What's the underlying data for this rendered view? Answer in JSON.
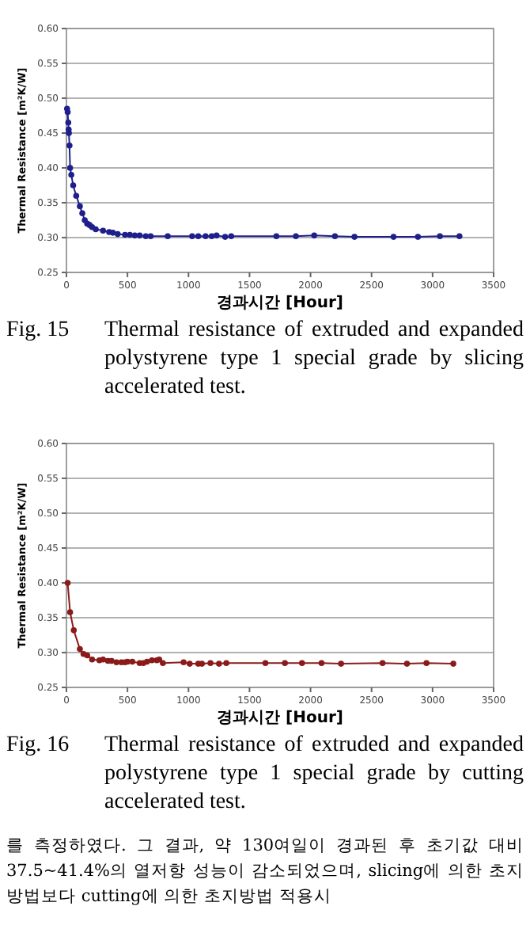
{
  "chart_data": [
    {
      "type": "line",
      "xlabel": "경과시간 [Hour]",
      "ylabel": "Thermal Resistance [m²K/W]",
      "xlim": [
        0,
        3500
      ],
      "ylim": [
        0.25,
        0.6
      ],
      "xticks": [
        0,
        500,
        1000,
        1500,
        2000,
        2500,
        3000,
        3500
      ],
      "yticks": [
        {
          "value": 0.25,
          "label": "0.25"
        },
        {
          "value": 0.3,
          "label": "0.30"
        },
        {
          "value": 0.35,
          "label": "0.35"
        },
        {
          "value": 0.4,
          "label": "0.40"
        },
        {
          "value": 0.45,
          "label": "0.45"
        },
        {
          "value": 0.5,
          "label": "0.50"
        },
        {
          "value": 0.55,
          "label": "0.55"
        },
        {
          "value": 0.6,
          "label": "0.60"
        }
      ],
      "grid": "y",
      "marker": "circle",
      "line_style": "solid",
      "x": [
        5,
        10,
        15,
        18,
        20,
        25,
        30,
        40,
        55,
        80,
        110,
        130,
        150,
        170,
        190,
        210,
        240,
        300,
        350,
        380,
        420,
        480,
        520,
        560,
        600,
        650,
        690,
        830,
        1030,
        1080,
        1140,
        1190,
        1230,
        1300,
        1350,
        1720,
        1880,
        2030,
        2200,
        2360,
        2680,
        2880,
        3060,
        3220
      ],
      "series": [
        {
          "color": "#1f1f8c",
          "values": [
            0.485,
            0.48,
            0.465,
            0.455,
            0.45,
            0.432,
            0.4,
            0.39,
            0.375,
            0.36,
            0.345,
            0.335,
            0.325,
            0.32,
            0.318,
            0.315,
            0.312,
            0.31,
            0.308,
            0.307,
            0.305,
            0.304,
            0.304,
            0.303,
            0.303,
            0.302,
            0.302,
            0.302,
            0.302,
            0.302,
            0.302,
            0.302,
            0.303,
            0.301,
            0.302,
            0.302,
            0.302,
            0.303,
            0.302,
            0.301,
            0.301,
            0.301,
            0.302,
            0.302
          ]
        }
      ],
      "annotations": [
        "Fig. 15 Thermal resistance of extruded and expanded polystyrene type 1 special grade by slicing accelerated test."
      ]
    },
    {
      "type": "line",
      "xlabel": "경과시간 [Hour]",
      "ylabel": "Thermal Resistance [m²K/W]",
      "xlim": [
        0,
        3500
      ],
      "ylim": [
        0.25,
        0.6
      ],
      "xticks": [
        0,
        500,
        1000,
        1500,
        2000,
        2500,
        3000,
        3500
      ],
      "yticks": [
        {
          "value": 0.25,
          "label": "0.25"
        },
        {
          "value": 0.3,
          "label": "0.30"
        },
        {
          "value": 0.35,
          "label": "0.35"
        },
        {
          "value": 0.4,
          "label": "0.40"
        },
        {
          "value": 0.45,
          "label": "0.45"
        },
        {
          "value": 0.5,
          "label": "0.50"
        },
        {
          "value": 0.55,
          "label": "0.55"
        },
        {
          "value": 0.6,
          "label": "0.60"
        }
      ],
      "grid": "y",
      "marker": "circle",
      "line_style": "solid",
      "x": [
        10,
        30,
        60,
        110,
        140,
        170,
        210,
        270,
        300,
        340,
        370,
        410,
        450,
        480,
        500,
        540,
        600,
        630,
        660,
        700,
        740,
        760,
        790,
        960,
        1010,
        1080,
        1110,
        1180,
        1250,
        1310,
        1630,
        1790,
        1930,
        2090,
        2250,
        2590,
        2790,
        2950,
        3170
      ],
      "series": [
        {
          "color": "#8b1a1a",
          "values": [
            0.4,
            0.358,
            0.332,
            0.305,
            0.298,
            0.296,
            0.29,
            0.289,
            0.29,
            0.288,
            0.288,
            0.286,
            0.286,
            0.286,
            0.287,
            0.287,
            0.285,
            0.285,
            0.287,
            0.289,
            0.289,
            0.29,
            0.285,
            0.286,
            0.284,
            0.284,
            0.284,
            0.285,
            0.284,
            0.285,
            0.285,
            0.285,
            0.285,
            0.285,
            0.284,
            0.285,
            0.284,
            0.285,
            0.284
          ]
        }
      ],
      "annotations": [
        "Fig. 16 Thermal resistance of extruded and expanded polystyrene type 1 special grade by cutting accelerated test.",
        "를 측정하였다. 그 결과, 약 130여일이 경과된 후 초기값 대비 37.5~41.4%의 열저항 성능이 감소되었으며, slicing에 의한 초지방법보다 cutting에 의한 초지방법 적용시"
      ]
    }
  ]
}
